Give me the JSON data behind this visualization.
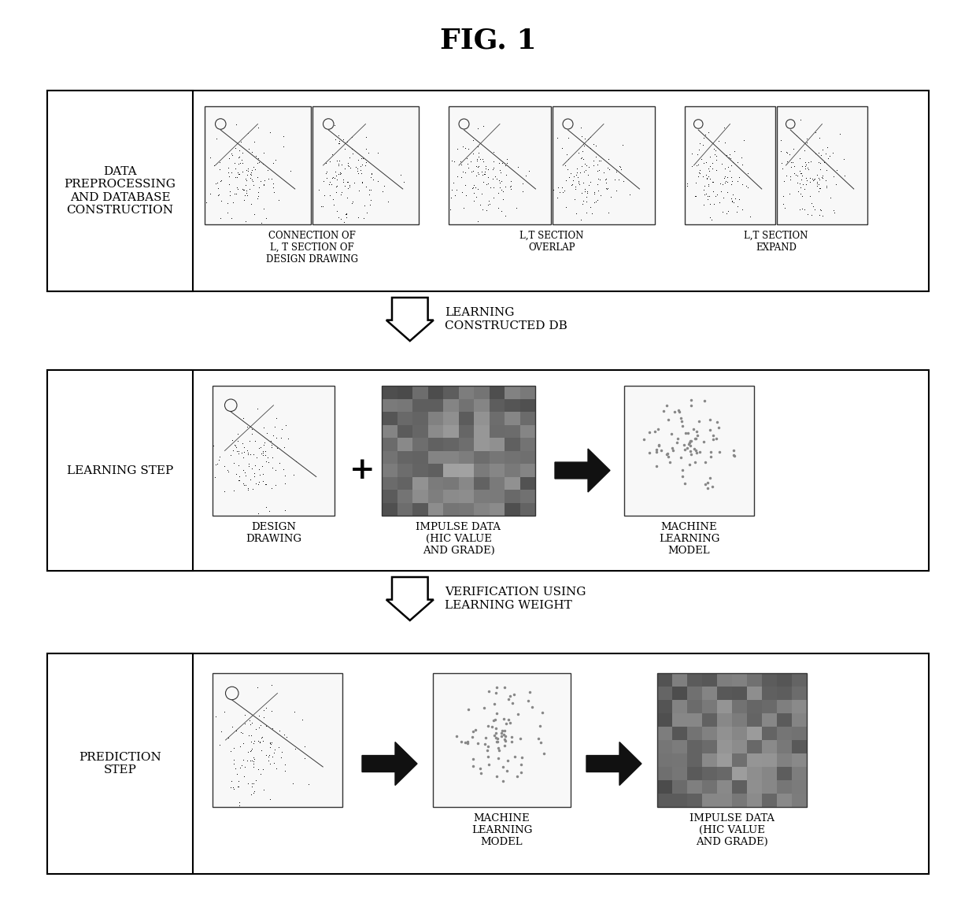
{
  "title": "FIG. 1",
  "title_fontsize": 26,
  "title_fontweight": "bold",
  "bg_color": "#ffffff",
  "label_color": "#000000",
  "row1_label": "DATA\nPREPROCESSING\nAND DATABASE\nCONSTRUCTION",
  "row2_label": "LEARNING STEP",
  "row3_label": "PREDICTION\nSTEP",
  "arrow1_text": "LEARNING\nCONSTRUCTED DB",
  "arrow2_text": "VERIFICATION USING\nLEARNING WEIGHT",
  "row1_items": [
    {
      "label": "CONNECTION OF\nL, T SECTION OF\nDESIGN DRAWING"
    },
    {
      "label": "L,T SECTION\nOVERLAP"
    },
    {
      "label": "L,T SECTION\nEXPAND"
    }
  ],
  "row2_items": [
    {
      "label": "DESIGN\nDRAWING"
    },
    {
      "label": "IMPULSE DATA\n(HIC VALUE\nAND GRADE)"
    },
    {
      "label": "MACHINE\nLEARNING\nMODEL"
    }
  ],
  "row3_items": [
    {
      "label": ""
    },
    {
      "label": "MACHINE\nLEARNING\nMODEL"
    },
    {
      "label": "IMPULSE DATA\n(HIC VALUE\nAND GRADE)"
    }
  ]
}
